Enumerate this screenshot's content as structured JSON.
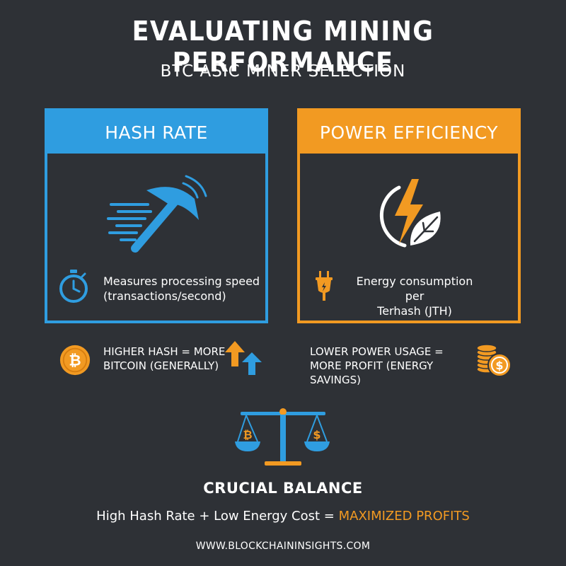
{
  "header": {
    "title": "EVALUATING MINING PERFORMANCE",
    "subtitle": "BTC ASIC MINER SELECTION"
  },
  "panels": {
    "hash_rate": {
      "title": "HASH RATE",
      "description_line1": "Measures processing speed",
      "description_line2": "(transactions/second)",
      "illustration_icon": "pickaxe-icon",
      "description_icon": "stopwatch-icon",
      "accent_color": "#2f9de0"
    },
    "power_efficiency": {
      "title": "POWER EFFICIENCY",
      "description_line1": "Energy consumption per",
      "description_line2": "Terhash (JTH)",
      "illustration_icon": "lightning-leaf-icon",
      "description_icon": "plug-icon",
      "accent_color": "#f29a22"
    }
  },
  "notes": {
    "hash": {
      "line1": "HIGHER HASH = MORE",
      "line2": "BITCOIN (GENERALLY)",
      "left_icon": "bitcoin-coin-icon",
      "right_icon": "up-arrows-icon"
    },
    "power": {
      "line1": "LOWER POWER USAGE =",
      "line2": "MORE PROFIT (ENERGY SAVINGS)",
      "right_icon": "coin-stack-icon"
    }
  },
  "balance": {
    "icon": "balance-scale-icon",
    "title": "CRUCIAL BALANCE",
    "equation_prefix": "High Hash Rate + Low Energy Cost = ",
    "equation_highlight": "MAXIMIZED PROFITS"
  },
  "footer": {
    "url": "WWW.BLOCKCHAININSIGHTS.COM"
  },
  "colors": {
    "background": "#2e3136",
    "blue": "#2f9de0",
    "orange": "#f29a22",
    "text": "#ffffff"
  }
}
